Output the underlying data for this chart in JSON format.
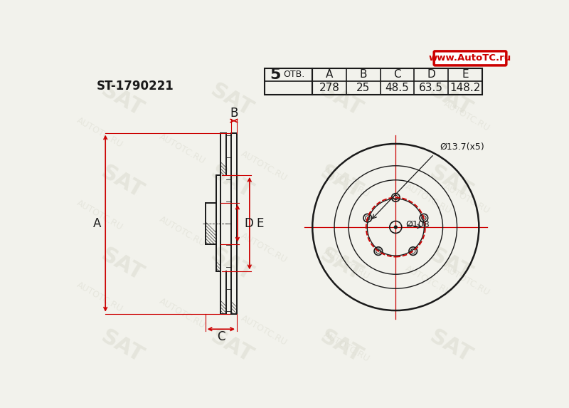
{
  "bg_color": "#f2f2ec",
  "line_color": "#1a1a1a",
  "red_color": "#cc0000",
  "part_number": "ST-1790221",
  "holes_label": "5 ОТВ.",
  "hole_label": "Ø13.7(x5)",
  "center_label": "Ø108",
  "website": "www.AutoTC.ru",
  "table_cols": [
    "A",
    "B",
    "C",
    "D",
    "E"
  ],
  "table_vals": [
    "278",
    "25",
    "48.5",
    "63.5",
    "148.2"
  ],
  "watermark_color": "#d8d8cc",
  "watermark_alpha": 0.6,
  "fig_width": 8.0,
  "fig_height": 5.73,
  "dpi": 100
}
